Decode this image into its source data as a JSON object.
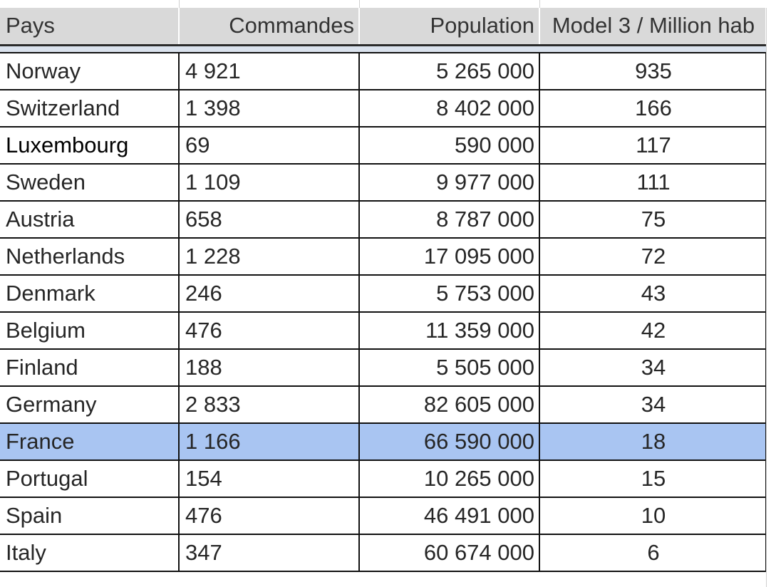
{
  "table": {
    "headers": {
      "country": "Pays",
      "orders": "Commandes",
      "population": "Population",
      "ratio": "Model 3 / Million hab"
    },
    "rows": [
      {
        "country": "Norway",
        "orders": "4 921",
        "population": "5 265 000",
        "ratio": "935"
      },
      {
        "country": "Switzerland",
        "orders": "1 398",
        "population": "8 402 000",
        "ratio": "166"
      },
      {
        "country": "Luxembourg",
        "orders": "69",
        "population": "590 000",
        "ratio": "117"
      },
      {
        "country": "Sweden",
        "orders": "1 109",
        "population": "9 977 000",
        "ratio": "111"
      },
      {
        "country": "Austria",
        "orders": "658",
        "population": "8 787 000",
        "ratio": "75"
      },
      {
        "country": "Netherlands",
        "orders": "1 228",
        "population": "17 095 000",
        "ratio": "72"
      },
      {
        "country": "Denmark",
        "orders": "246",
        "population": "5 753 000",
        "ratio": "43"
      },
      {
        "country": "Belgium",
        "orders": "476",
        "population": "11 359 000",
        "ratio": "42"
      },
      {
        "country": "Finland",
        "orders": "188",
        "population": "5 505 000",
        "ratio": "34"
      },
      {
        "country": "Germany",
        "orders": "2 833",
        "population": "82 605 000",
        "ratio": "34"
      },
      {
        "country": "France",
        "orders": "1 166",
        "population": "66 590 000",
        "ratio": "18"
      },
      {
        "country": "Portugal",
        "orders": "154",
        "population": "10 265 000",
        "ratio": "15"
      },
      {
        "country": "Spain",
        "orders": "476",
        "population": "46 491 000",
        "ratio": "10"
      },
      {
        "country": "Italy",
        "orders": "347",
        "population": "60 674 000",
        "ratio": "6"
      }
    ]
  },
  "colors": {
    "header_bg": "#d9d9d9",
    "selected_row_bg": "#a9c5f2",
    "grid_line": "#111111"
  }
}
